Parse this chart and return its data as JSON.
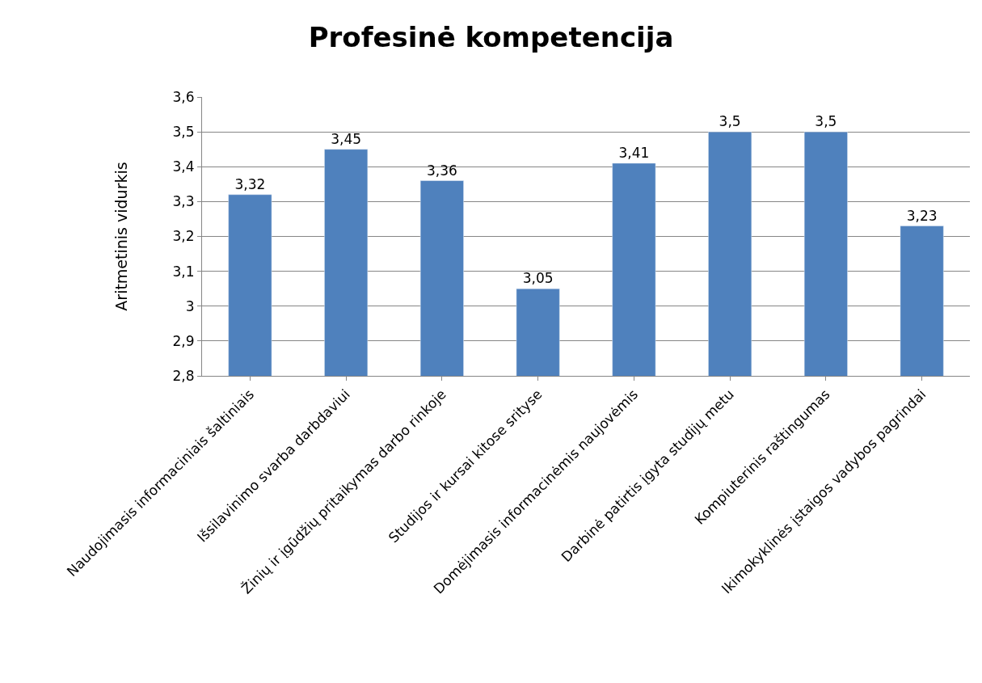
{
  "chart_data": {
    "type": "bar",
    "title": "Profesinė kompetencija",
    "ylabel": "Aritmetinis vidurkis",
    "categories": [
      "Naudojimasis informaciniais šaltiniais",
      "Išsilavinimo svarba darbdaviui",
      "Žinių ir įgūdžių pritaikymas darbo rinkoje",
      "Studijos ir kursai kitose srityse",
      "Domėjimasis informacinėmis naujovėmis",
      "Darbinė patirtis įgyta studijų metu",
      "Kompiuterinis raštingumas",
      "Ikimokyklinės įstaigos vadybos pagrindai"
    ],
    "values": [
      3.32,
      3.45,
      3.36,
      3.05,
      3.41,
      3.5,
      3.5,
      3.23
    ],
    "value_labels": [
      "3,32",
      "3,45",
      "3,36",
      "3,05",
      "3,41",
      "3,5",
      "3,5",
      "3,23"
    ],
    "color": "#4f81bd",
    "ylim": [
      2.8,
      3.6
    ],
    "yticks": [
      {
        "value": 2.8,
        "label": "2,8"
      },
      {
        "value": 2.9,
        "label": "2,9"
      },
      {
        "value": 3.0,
        "label": "3"
      },
      {
        "value": 3.1,
        "label": "3,1"
      },
      {
        "value": 3.2,
        "label": "3,2"
      },
      {
        "value": 3.3,
        "label": "3,3"
      },
      {
        "value": 3.4,
        "label": "3,4"
      },
      {
        "value": 3.5,
        "label": "3,5"
      },
      {
        "value": 3.6,
        "label": "3,6"
      }
    ],
    "grid": "y",
    "legend": false
  }
}
